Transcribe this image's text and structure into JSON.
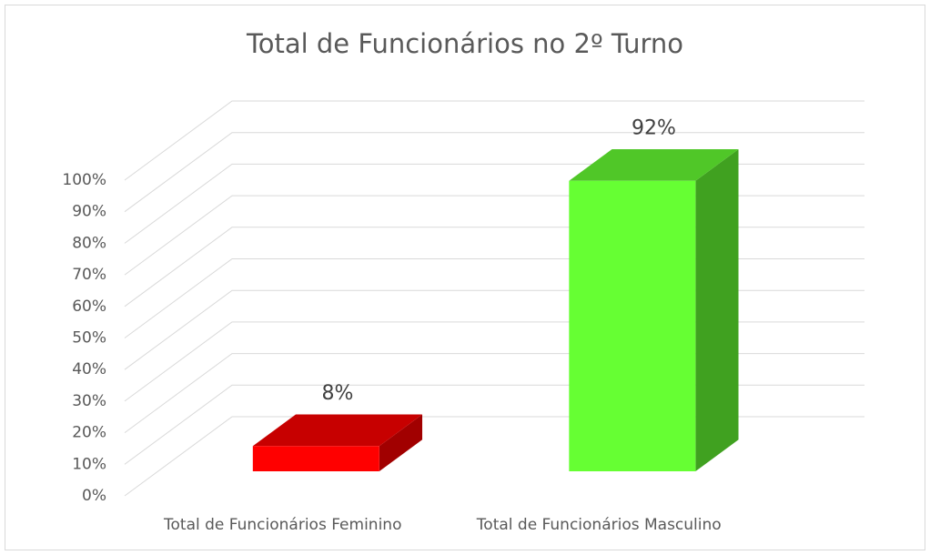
{
  "chart_data": {
    "type": "bar3d",
    "title": "Total de Funcionários no 2º Turno",
    "categories": [
      "Total de Funcionários Feminino",
      "Total de Funcionários Masculino"
    ],
    "values": [
      8,
      92
    ],
    "value_labels": [
      "8%",
      "92%"
    ],
    "colors": [
      "#ff0000",
      "#66ff33"
    ],
    "ylim": [
      0,
      100
    ],
    "yticks": [
      {
        "value": 0,
        "label": "0%"
      },
      {
        "value": 10,
        "label": "10%"
      },
      {
        "value": 20,
        "label": "20%"
      },
      {
        "value": 30,
        "label": "30%"
      },
      {
        "value": 40,
        "label": "40%"
      },
      {
        "value": 50,
        "label": "50%"
      },
      {
        "value": 60,
        "label": "60%"
      },
      {
        "value": 70,
        "label": "70%"
      },
      {
        "value": 80,
        "label": "80%"
      },
      {
        "value": 90,
        "label": "90%"
      },
      {
        "value": 100,
        "label": "100%"
      }
    ],
    "grid": true
  }
}
